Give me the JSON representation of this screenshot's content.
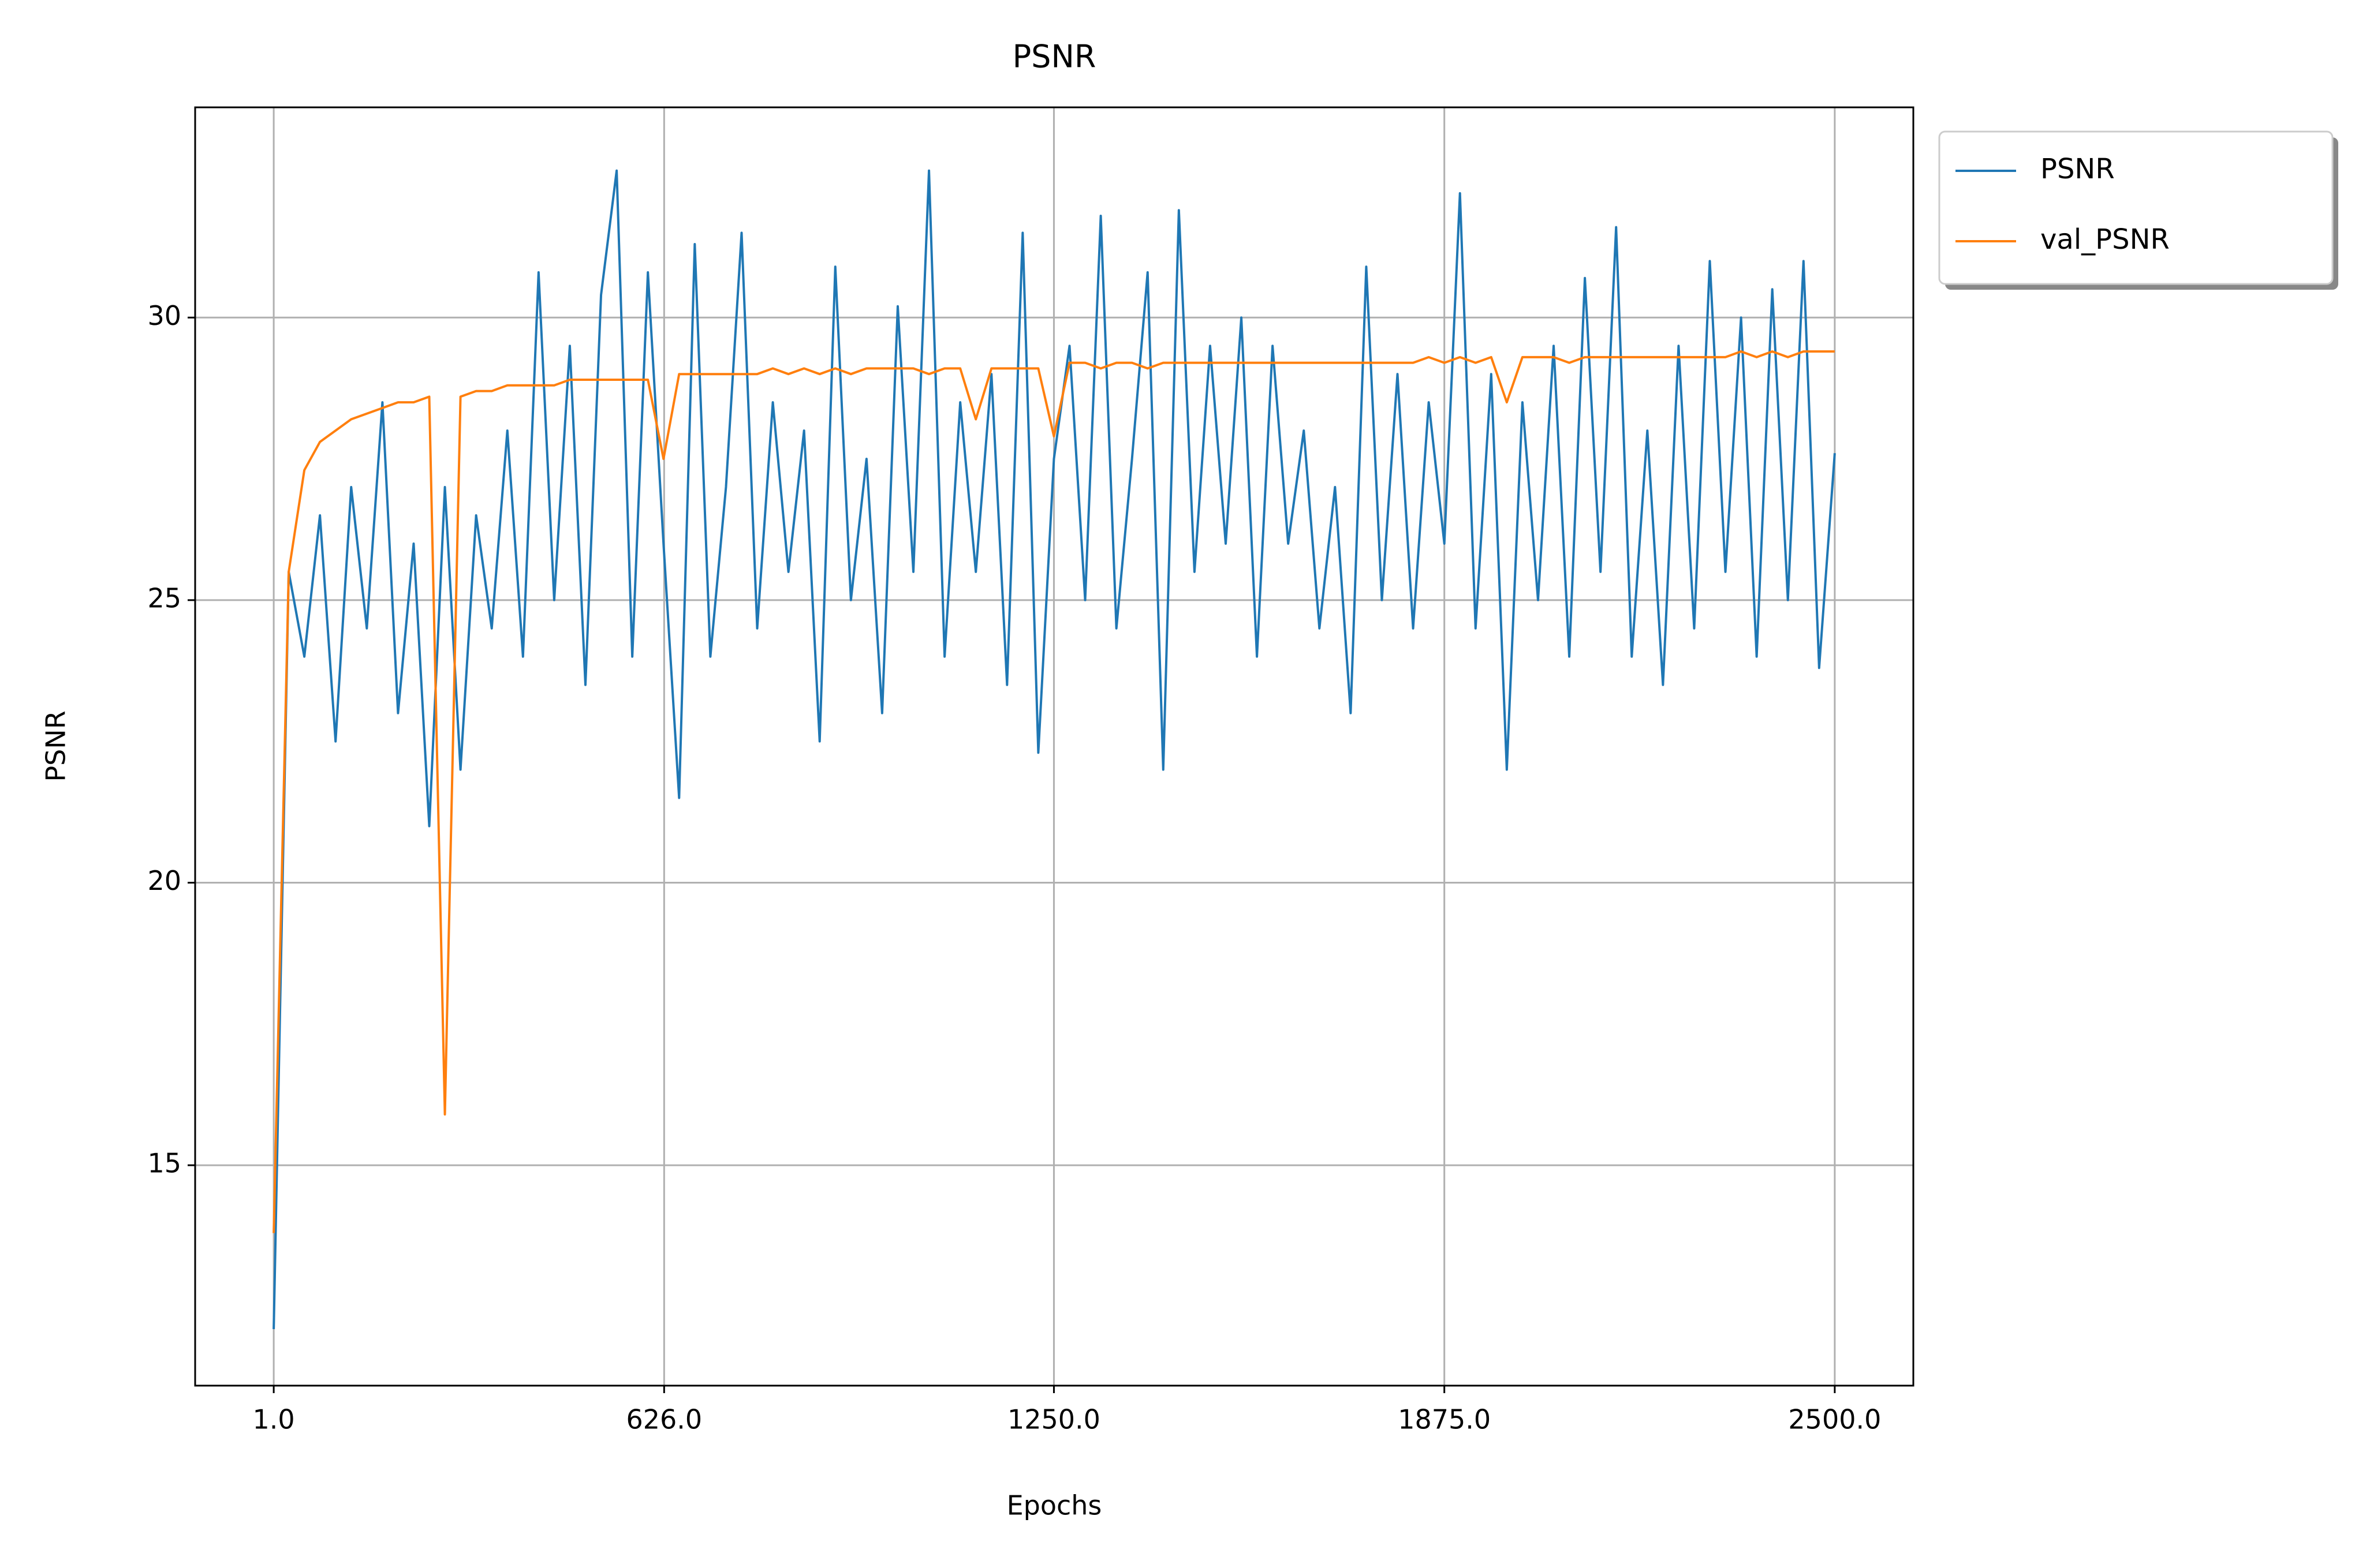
{
  "chart_data": {
    "type": "line",
    "title": "PSNR",
    "xlabel": "Epochs",
    "ylabel": "PSNR",
    "x": [
      1,
      25,
      50,
      75,
      100,
      125,
      150,
      175,
      200,
      225,
      250,
      275,
      300,
      325,
      350,
      375,
      400,
      425,
      450,
      475,
      500,
      525,
      550,
      575,
      600,
      625,
      650,
      675,
      700,
      725,
      750,
      775,
      800,
      825,
      850,
      875,
      900,
      925,
      950,
      975,
      1000,
      1025,
      1050,
      1075,
      1100,
      1125,
      1150,
      1175,
      1200,
      1225,
      1250,
      1275,
      1300,
      1325,
      1350,
      1375,
      1400,
      1425,
      1450,
      1475,
      1500,
      1525,
      1550,
      1575,
      1600,
      1625,
      1650,
      1675,
      1700,
      1725,
      1750,
      1775,
      1800,
      1825,
      1850,
      1875,
      1900,
      1925,
      1950,
      1975,
      2000,
      2025,
      2050,
      2075,
      2100,
      2125,
      2150,
      2175,
      2200,
      2225,
      2250,
      2275,
      2300,
      2325,
      2350,
      2375,
      2400,
      2425,
      2450,
      2475,
      2500
    ],
    "series": [
      {
        "name": "PSNR",
        "color": "#1f77b4",
        "values": [
          12.1,
          25.5,
          24.0,
          26.5,
          22.5,
          27.0,
          24.5,
          28.5,
          23.0,
          26.0,
          21.0,
          27.0,
          22.0,
          26.5,
          24.5,
          28.0,
          24.0,
          30.8,
          25.0,
          29.5,
          23.5,
          30.4,
          32.6,
          24.0,
          30.8,
          26.0,
          21.5,
          31.3,
          24.0,
          27.0,
          31.5,
          24.5,
          28.5,
          25.5,
          28.0,
          22.5,
          30.9,
          25.0,
          27.5,
          23.0,
          30.2,
          25.5,
          32.6,
          24.0,
          28.5,
          25.5,
          29.0,
          23.5,
          31.5,
          22.3,
          27.5,
          29.5,
          25.0,
          31.8,
          24.5,
          27.5,
          30.8,
          22.0,
          31.9,
          25.5,
          29.5,
          26.0,
          30.0,
          24.0,
          29.5,
          26.0,
          28.0,
          24.5,
          27.0,
          23.0,
          30.9,
          25.0,
          29.0,
          24.5,
          28.5,
          26.0,
          32.2,
          24.5,
          29.0,
          22.0,
          28.5,
          25.0,
          29.5,
          24.0,
          30.7,
          25.5,
          31.6,
          24.0,
          28.0,
          23.5,
          29.5,
          24.5,
          31.0,
          25.5,
          30.0,
          24.0,
          30.5,
          25.0,
          31.0,
          23.8,
          27.6
        ]
      },
      {
        "name": "val_PSNR",
        "color": "#ff7f0e",
        "values": [
          13.8,
          25.5,
          27.3,
          27.8,
          28.0,
          28.2,
          28.3,
          28.4,
          28.5,
          28.5,
          28.6,
          15.9,
          28.6,
          28.7,
          28.7,
          28.8,
          28.8,
          28.8,
          28.8,
          28.9,
          28.9,
          28.9,
          28.9,
          28.9,
          28.9,
          27.5,
          29.0,
          29.0,
          29.0,
          29.0,
          29.0,
          29.0,
          29.1,
          29.0,
          29.1,
          29.0,
          29.1,
          29.0,
          29.1,
          29.1,
          29.1,
          29.1,
          29.0,
          29.1,
          29.1,
          28.2,
          29.1,
          29.1,
          29.1,
          29.1,
          27.9,
          29.2,
          29.2,
          29.1,
          29.2,
          29.2,
          29.1,
          29.2,
          29.2,
          29.2,
          29.2,
          29.2,
          29.2,
          29.2,
          29.2,
          29.2,
          29.2,
          29.2,
          29.2,
          29.2,
          29.2,
          29.2,
          29.2,
          29.2,
          29.3,
          29.2,
          29.3,
          29.2,
          29.3,
          28.5,
          29.3,
          29.3,
          29.3,
          29.2,
          29.3,
          29.3,
          29.3,
          29.3,
          29.3,
          29.3,
          29.3,
          29.3,
          29.3,
          29.3,
          29.4,
          29.3,
          29.4,
          29.3,
          29.4,
          29.4,
          29.4
        ]
      }
    ],
    "xlim": [
      -124.8,
      2625.8
    ],
    "xticks": [
      {
        "value": 1,
        "label": "1.0"
      },
      {
        "value": 626,
        "label": "626.0"
      },
      {
        "value": 1250,
        "label": "1250.0"
      },
      {
        "value": 1875,
        "label": "1875.0"
      },
      {
        "value": 2500,
        "label": "2500.0"
      }
    ],
    "ylim": [
      11.1,
      33.72
    ],
    "yticks": [
      15,
      20,
      25,
      30
    ],
    "grid": true,
    "legend": "outside-upper-right"
  }
}
